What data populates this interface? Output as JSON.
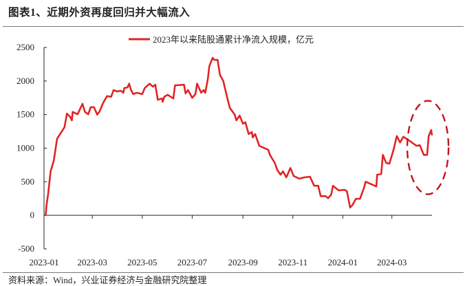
{
  "header": {
    "title": "图表1、近期外资再度回归并大幅流入"
  },
  "footer": {
    "source": "资料来源：Wind，兴业证券经济与金融研究院整理"
  },
  "colors": {
    "series": "#e02424",
    "annotation": "#c0141e",
    "axis": "#222222",
    "rule": "#777777"
  },
  "chart_data": {
    "type": "line",
    "title": "",
    "xlabel": "",
    "ylabel": "",
    "ylim": [
      -500,
      2500
    ],
    "yticks": [
      -500,
      0,
      500,
      1000,
      1500,
      2000,
      2500
    ],
    "ytick_labels": [
      "-500",
      "0",
      "500",
      "1000",
      "1500",
      "2000",
      "2500"
    ],
    "xlim": [
      "2023-01-01",
      "2024-04-19"
    ],
    "xticks": [
      "2023-01-01",
      "2023-03-01",
      "2023-05-01",
      "2023-07-01",
      "2023-09-01",
      "2023-11-01",
      "2024-01-01",
      "2024-03-01"
    ],
    "xtick_labels": [
      "2023-01",
      "2023-03",
      "2023-05",
      "2023-07",
      "2023-09",
      "2023-11",
      "2024-01",
      "2024-03"
    ],
    "grid": false,
    "legend_position": "top-center",
    "annotation": "dashed-ellipse-around-latest-inflow",
    "series": [
      {
        "name": "2023年以来陆股通累计净流入规模，亿元",
        "x": [
          "2023-01-03",
          "2023-01-04",
          "2023-01-06",
          "2023-01-09",
          "2023-01-13",
          "2023-01-15",
          "2023-01-17",
          "2023-01-26",
          "2023-01-29",
          "2023-02-02",
          "2023-02-04",
          "2023-02-05",
          "2023-02-11",
          "2023-02-17",
          "2023-02-20",
          "2023-02-24",
          "2023-02-27",
          "2023-03-03",
          "2023-03-07",
          "2023-03-10",
          "2023-03-14",
          "2023-03-19",
          "2023-03-24",
          "2023-03-27",
          "2023-03-31",
          "2023-04-05",
          "2023-04-08",
          "2023-04-09",
          "2023-04-13",
          "2023-04-15",
          "2023-04-17",
          "2023-04-20",
          "2023-04-24",
          "2023-05-01",
          "2023-05-04",
          "2023-05-10",
          "2023-05-14",
          "2023-05-17",
          "2023-05-20",
          "2023-05-25",
          "2023-05-26",
          "2023-05-28",
          "2023-06-01",
          "2023-06-08",
          "2023-06-10",
          "2023-06-21",
          "2023-06-23",
          "2023-06-26",
          "2023-07-01",
          "2023-07-05",
          "2023-07-07",
          "2023-07-12",
          "2023-07-15",
          "2023-07-17",
          "2023-07-20",
          "2023-07-22",
          "2023-07-26",
          "2023-07-28",
          "2023-08-01",
          "2023-08-04",
          "2023-08-08",
          "2023-08-12",
          "2023-08-16",
          "2023-08-22",
          "2023-08-24",
          "2023-08-28",
          "2023-09-01",
          "2023-09-04",
          "2023-09-08",
          "2023-09-12",
          "2023-09-13",
          "2023-09-16",
          "2023-09-21",
          "2023-10-02",
          "2023-10-04",
          "2023-10-10",
          "2023-10-13",
          "2023-10-17",
          "2023-10-20",
          "2023-10-24",
          "2023-10-29",
          "2023-11-02",
          "2023-11-09",
          "2023-11-15",
          "2023-11-22",
          "2023-11-27",
          "2023-12-02",
          "2023-12-05",
          "2023-12-11",
          "2023-12-14",
          "2023-12-18",
          "2023-12-20",
          "2023-12-27",
          "2024-01-03",
          "2024-01-06",
          "2024-01-10",
          "2024-01-13",
          "2024-01-17",
          "2024-01-22",
          "2024-01-27",
          "2024-01-29",
          "2024-02-11",
          "2024-02-12",
          "2024-02-17",
          "2024-02-19",
          "2024-02-23",
          "2024-02-27",
          "2024-03-03",
          "2024-03-07",
          "2024-03-11",
          "2024-03-15",
          "2024-03-23",
          "2024-03-31",
          "2024-04-04",
          "2024-04-09",
          "2024-04-13",
          "2024-04-15",
          "2024-04-18",
          "2024-04-19"
        ],
        "values": [
          0,
          150,
          310,
          650,
          820,
          985,
          1140,
          1310,
          1515,
          1465,
          1415,
          1540,
          1505,
          1660,
          1540,
          1505,
          1610,
          1610,
          1500,
          1550,
          1670,
          1775,
          1765,
          1865,
          1845,
          1855,
          1825,
          1895,
          1905,
          1960,
          1875,
          1805,
          1825,
          1805,
          1895,
          1960,
          1915,
          1945,
          1720,
          1740,
          1690,
          1765,
          1795,
          1740,
          1935,
          1945,
          1815,
          1865,
          1750,
          1805,
          1960,
          1825,
          1865,
          1825,
          2020,
          2225,
          2345,
          2315,
          2315,
          2090,
          2000,
          1795,
          1600,
          1500,
          1415,
          1485,
          1365,
          1385,
          1210,
          1240,
          1160,
          1210,
          1035,
          975,
          900,
          780,
          675,
          605,
          655,
          565,
          705,
          585,
          545,
          565,
          575,
          440,
          440,
          285,
          285,
          255,
          310,
          440,
          370,
          380,
          360,
          115,
          155,
          245,
          245,
          410,
          500,
          430,
          605,
          615,
          900,
          780,
          770,
          975,
          1180,
          1085,
          1170,
          1105,
          1035,
          1045,
          900,
          900,
          1180,
          1270,
          1190
        ]
      }
    ]
  }
}
